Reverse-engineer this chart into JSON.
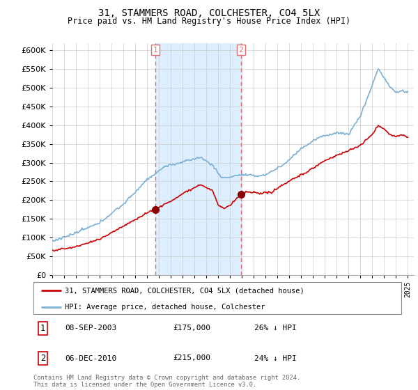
{
  "title": "31, STAMMERS ROAD, COLCHESTER, CO4 5LX",
  "subtitle": "Price paid vs. HM Land Registry's House Price Index (HPI)",
  "hpi_color": "#7bafd4",
  "price_color": "#cc0000",
  "marker_color": "#8b0000",
  "vline_color": "#e07070",
  "highlight_fill": "#ddeeff",
  "ylim": [
    0,
    620000
  ],
  "yticks": [
    0,
    50000,
    100000,
    150000,
    200000,
    250000,
    300000,
    350000,
    400000,
    450000,
    500000,
    550000,
    600000
  ],
  "legend_label_price": "31, STAMMERS ROAD, COLCHESTER, CO4 5LX (detached house)",
  "legend_label_hpi": "HPI: Average price, detached house, Colchester",
  "sale1_label": "1",
  "sale1_date": "08-SEP-2003",
  "sale1_price": "£175,000",
  "sale1_hpi": "26% ↓ HPI",
  "sale2_label": "2",
  "sale2_date": "06-DEC-2010",
  "sale2_price": "£215,000",
  "sale2_hpi": "24% ↓ HPI",
  "footer": "Contains HM Land Registry data © Crown copyright and database right 2024.\nThis data is licensed under the Open Government Licence v3.0.",
  "sale1_year": 2003.69,
  "sale1_value": 175000,
  "sale2_year": 2010.92,
  "sale2_value": 215000
}
